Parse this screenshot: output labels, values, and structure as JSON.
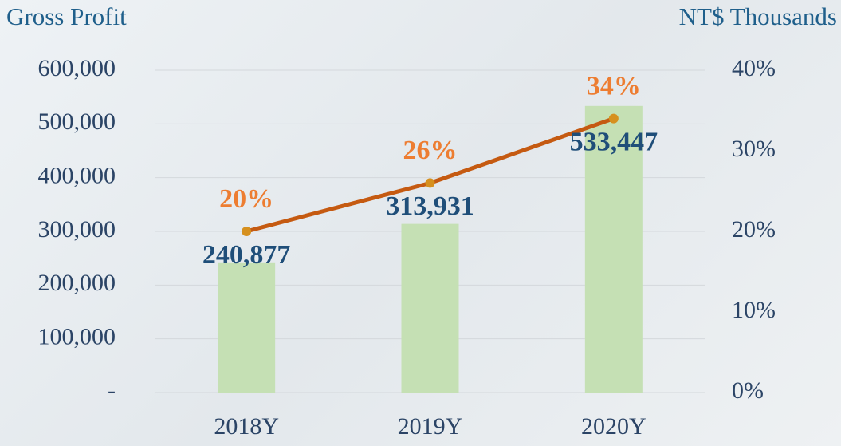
{
  "chart_data": {
    "type": "bar-line",
    "title": "Gross Profit",
    "unit_label": "NT$ Thousands",
    "categories": [
      "2018Y",
      "2019Y",
      "2020Y"
    ],
    "series": [
      {
        "type": "bar",
        "color": "#c5e0b4",
        "values": [
          240877,
          313931,
          533447
        ],
        "value_labels": [
          "240,877",
          "313,931",
          "533,447"
        ],
        "label_color": "#1f4e79"
      },
      {
        "type": "line",
        "axis": "y2",
        "color": "#c55a11",
        "marker_color": "#d6901e",
        "values": [
          20,
          26,
          34
        ],
        "value_labels": [
          "20%",
          "26%",
          "34%"
        ],
        "label_color": "#ed7d31"
      }
    ],
    "ylim": [
      0,
      600000
    ],
    "yticks": [
      {
        "value": 0,
        "label": "-"
      },
      {
        "value": 100000,
        "label": "100,000"
      },
      {
        "value": 200000,
        "label": "200,000"
      },
      {
        "value": 300000,
        "label": "300,000"
      },
      {
        "value": 400000,
        "label": "400,000"
      },
      {
        "value": 500000,
        "label": "500,000"
      },
      {
        "value": 600000,
        "label": "600,000"
      }
    ],
    "y2lim": [
      0,
      40
    ],
    "y2ticks": [
      {
        "value": 0,
        "label": "0%"
      },
      {
        "value": 10,
        "label": "10%"
      },
      {
        "value": 20,
        "label": "20%"
      },
      {
        "value": 30,
        "label": "30%"
      },
      {
        "value": 40,
        "label": "40%"
      }
    ],
    "grid": true
  }
}
